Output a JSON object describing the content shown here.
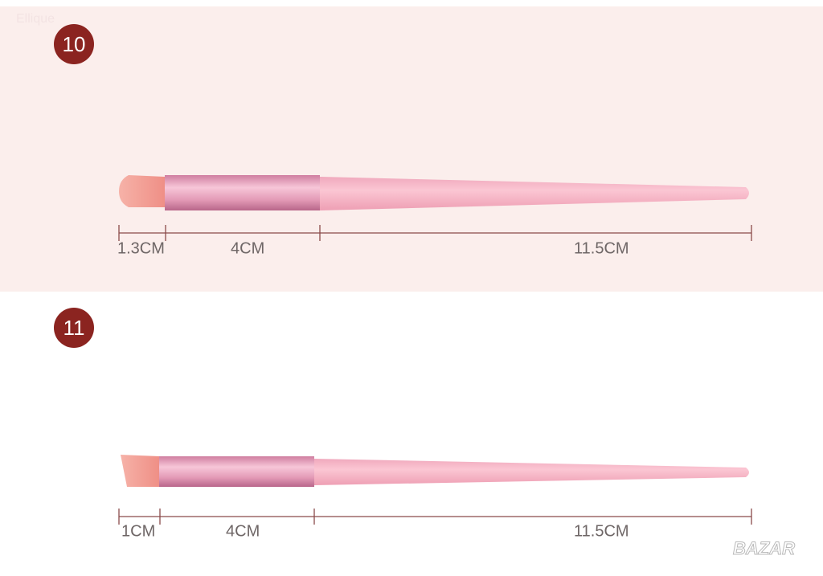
{
  "corner_text": "Ellique",
  "panels": [
    {
      "number": "10",
      "dimensions": [
        "1.3CM",
        "4CM",
        "11.5CM"
      ]
    },
    {
      "number": "11",
      "dimensions": [
        "1CM",
        "4CM",
        "11.5CM"
      ]
    }
  ],
  "watermark": "BAZAR"
}
